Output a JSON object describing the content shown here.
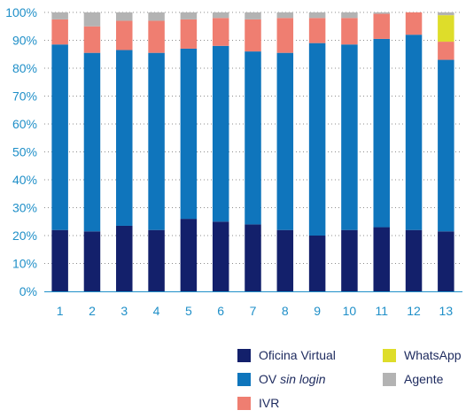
{
  "chart_data": {
    "type": "bar",
    "stacked": true,
    "normalized": true,
    "categories": [
      "1",
      "2",
      "3",
      "4",
      "5",
      "6",
      "7",
      "8",
      "9",
      "10",
      "11",
      "12",
      "13"
    ],
    "ylim": [
      0,
      100
    ],
    "yticks": [
      "0%",
      "10%",
      "20%",
      "30%",
      "40%",
      "50%",
      "60%",
      "70%",
      "80%",
      "90%",
      "100%"
    ],
    "grid": true,
    "legend_position": "bottom-right",
    "series": [
      {
        "name": "Oficina Virtual",
        "color": "#13206b",
        "values": [
          22,
          21.5,
          23.5,
          22,
          26,
          25,
          24,
          22,
          20,
          22,
          23,
          22,
          21.5
        ]
      },
      {
        "name": "OV sin login",
        "color": "#0f75bc",
        "values": [
          66.5,
          64,
          63,
          63.5,
          61,
          63,
          62,
          63.5,
          69,
          66.5,
          67.5,
          70,
          61.5
        ]
      },
      {
        "name": "IVR",
        "color": "#ef7e71",
        "values": [
          9,
          9.5,
          10.5,
          11.5,
          10.5,
          10,
          11.5,
          12.5,
          9,
          9.5,
          9,
          8,
          6.5
        ]
      },
      {
        "name": "WhatsApp",
        "color": "#dedd2a",
        "values": [
          0,
          0,
          0,
          0,
          0,
          0,
          0,
          0,
          0,
          0,
          0,
          0,
          9.5
        ]
      },
      {
        "name": "Agente",
        "color": "#b3b3b3",
        "values": [
          2.5,
          5,
          3,
          3,
          2.5,
          2,
          2.5,
          2,
          2,
          2,
          0.5,
          0,
          1
        ]
      }
    ]
  },
  "legend": {
    "oficina_virtual": "Oficina Virtual",
    "ov_prefix": "OV",
    "ov_italic": "sin login",
    "ivr": "IVR",
    "whatsapp": "WhatsApp",
    "agente": "Agente"
  }
}
